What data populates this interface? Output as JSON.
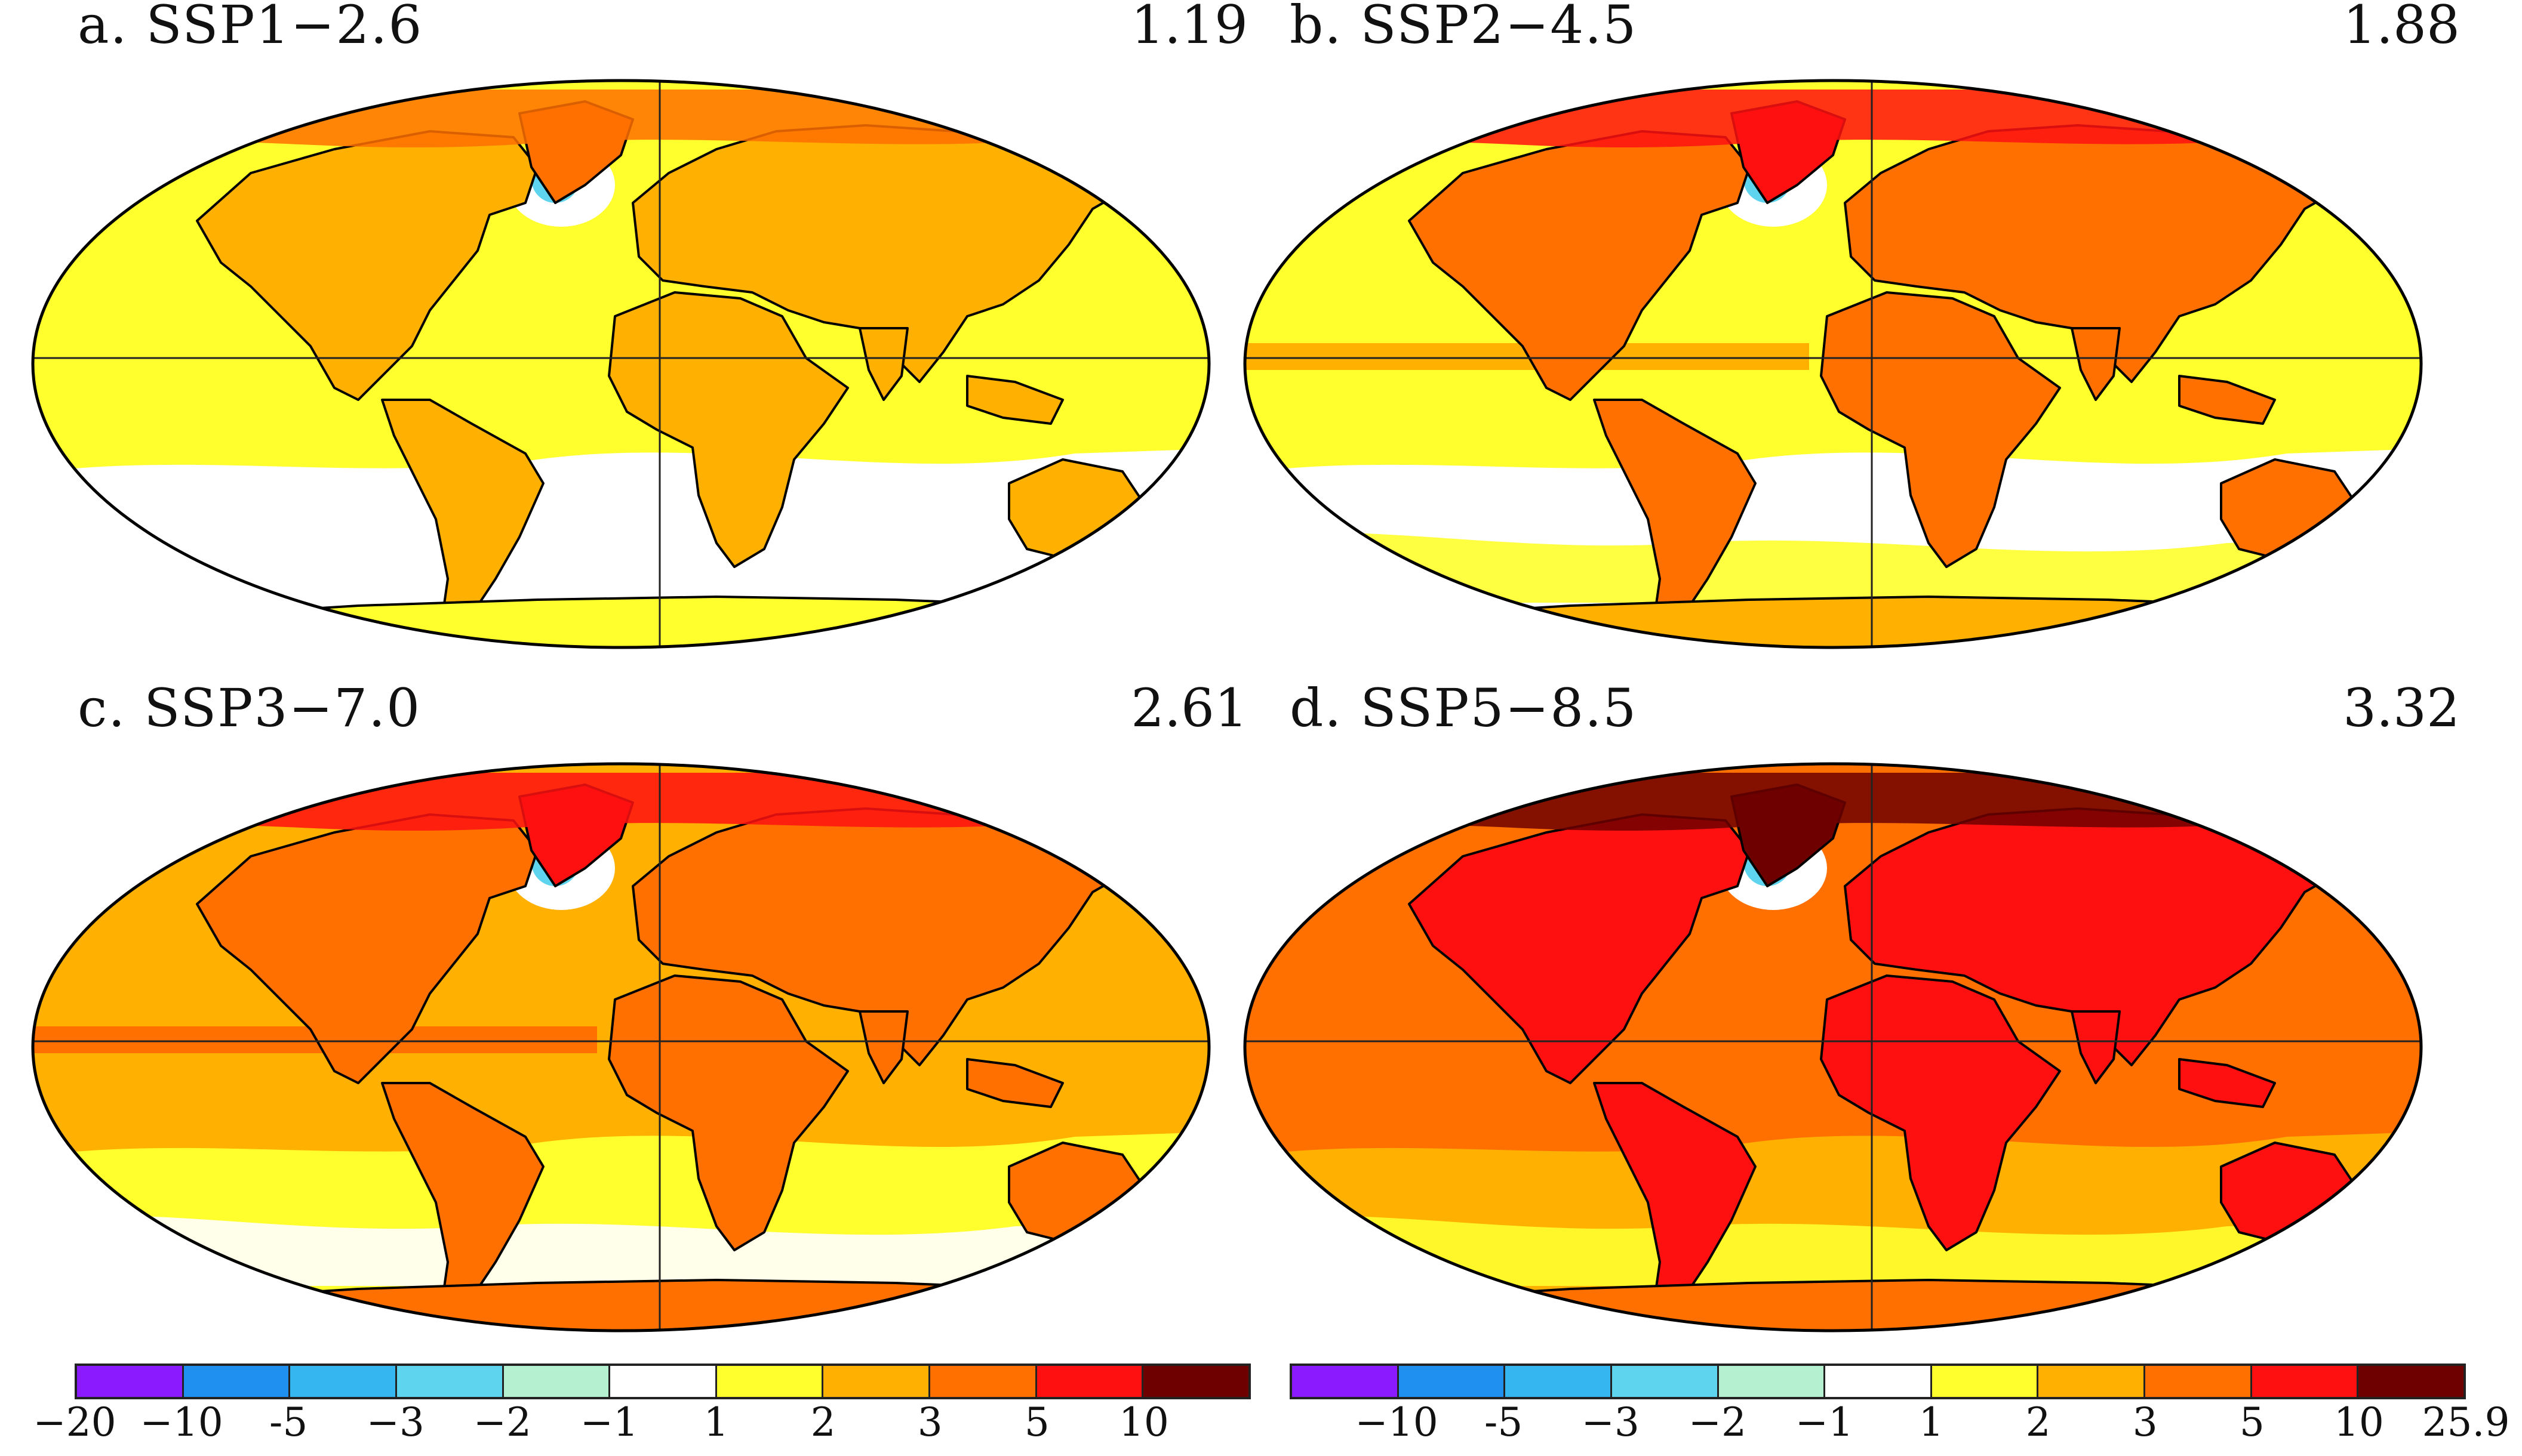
{
  "panels": [
    {
      "title": "a. SSP1−2.6",
      "value": "1.19",
      "level": 0
    },
    {
      "title": "b. SSP2−4.5",
      "value": "1.88",
      "level": 1
    },
    {
      "title": "c. SSP3−7.0",
      "value": "2.61",
      "level": 2
    },
    {
      "title": "d. SSP5−8.5",
      "value": "3.32",
      "level": 3
    }
  ],
  "colorbar": {
    "colors": [
      "#8c1aff",
      "#1f8ff0",
      "#35b6f0",
      "#5fd4ee",
      "#b5f0d0",
      "#ffffff",
      "#ffff2e",
      "#ffb000",
      "#ff7000",
      "#ff1010",
      "#6e0000"
    ],
    "left_labels": [
      "−20",
      "−10",
      "-5",
      "−3",
      "−2",
      "−1",
      "1",
      "2",
      "3",
      "5",
      "10"
    ],
    "right_labels": [
      "−10",
      "-5",
      "−3",
      "−2",
      "−1",
      "1",
      "2",
      "3",
      "5",
      "10",
      "25.9"
    ]
  }
}
